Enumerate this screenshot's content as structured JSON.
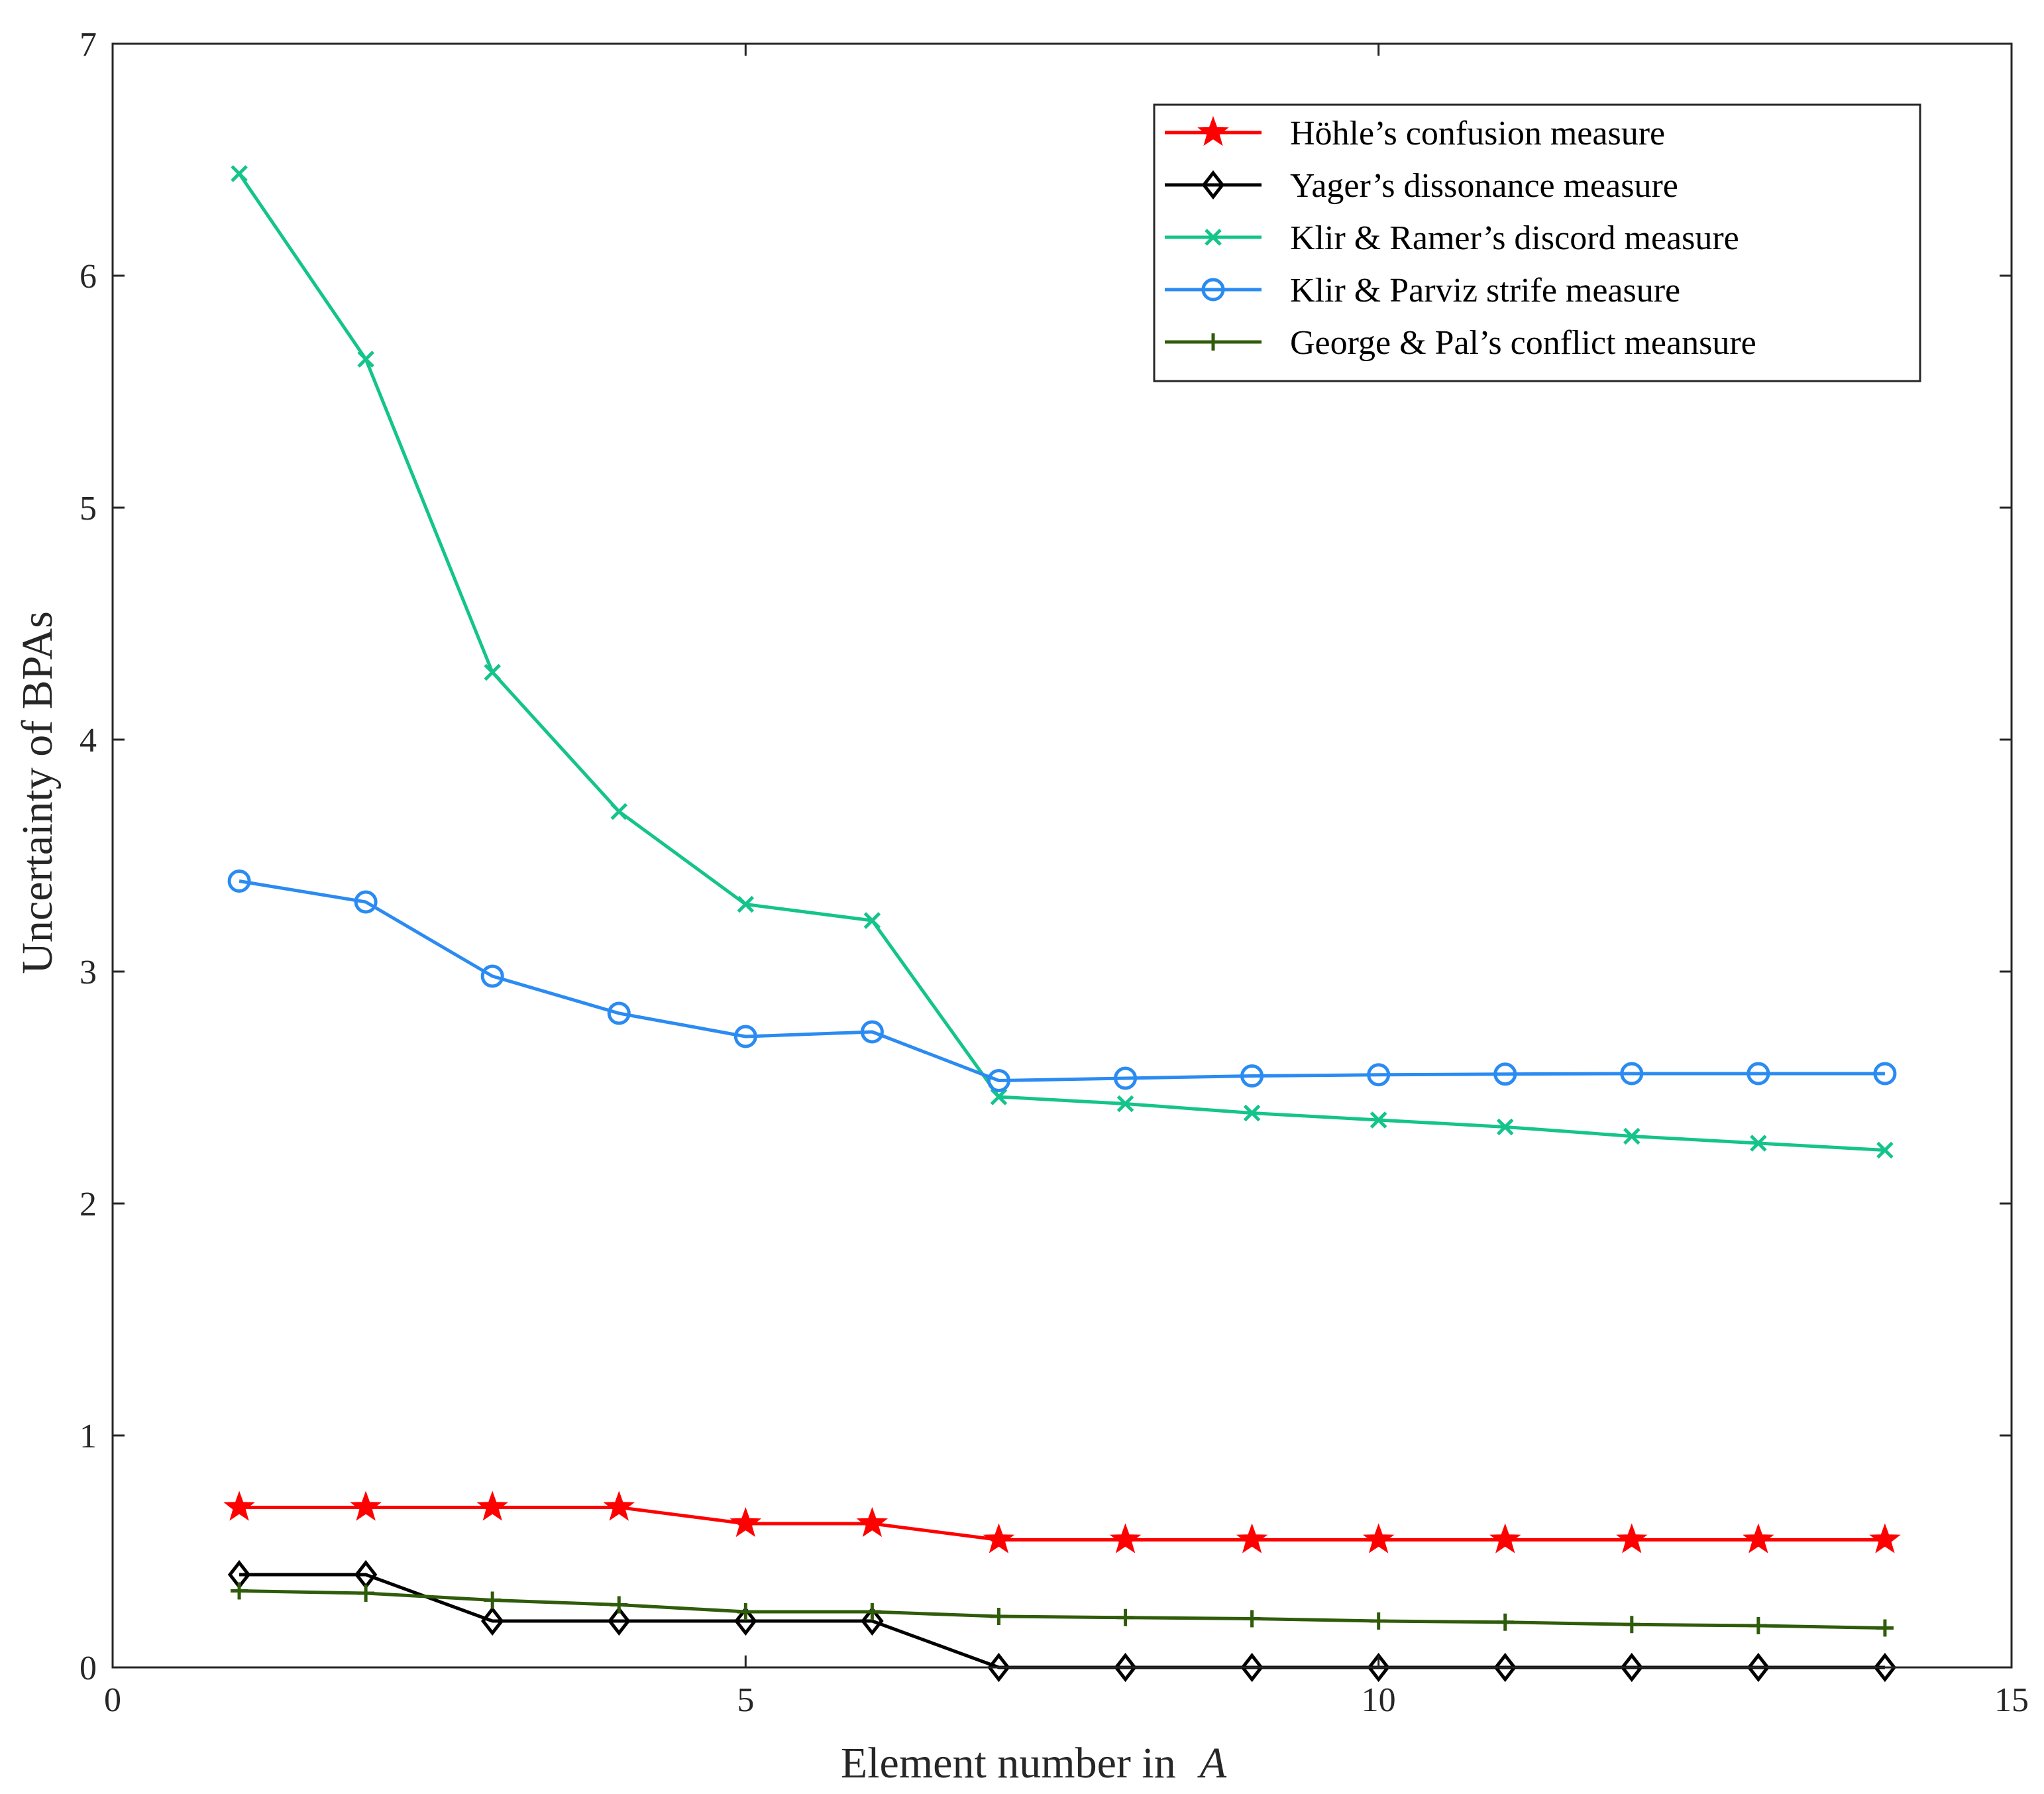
{
  "chart_data": {
    "type": "line",
    "title": "",
    "xlabel": "Element number in",
    "xlabel_symbol": "A",
    "ylabel": "Uncertainty of BPAs",
    "xlim": [
      0,
      15
    ],
    "ylim": [
      0,
      7
    ],
    "xticks": [
      0,
      5,
      10,
      15
    ],
    "yticks": [
      0,
      1,
      2,
      3,
      4,
      5,
      6,
      7
    ],
    "x": [
      1,
      2,
      3,
      4,
      5,
      6,
      7,
      8,
      9,
      10,
      11,
      12,
      13,
      14
    ],
    "legend_position": "top-right",
    "grid": false,
    "series": [
      {
        "name": "Höhle’s confusion measure",
        "color": "#ff0000",
        "marker": "pentagram",
        "values": [
          0.69,
          0.69,
          0.69,
          0.69,
          0.62,
          0.62,
          0.55,
          0.55,
          0.55,
          0.55,
          0.55,
          0.55,
          0.55,
          0.55
        ]
      },
      {
        "name": "Yager’s dissonance measure",
        "color": "#000000",
        "marker": "diamond",
        "values": [
          0.4,
          0.4,
          0.2,
          0.2,
          0.2,
          0.2,
          0.0,
          0.0,
          0.0,
          0.0,
          0.0,
          0.0,
          0.0,
          0.0
        ]
      },
      {
        "name": "Klir & Ramer’s discord measure",
        "color": "#14c48a",
        "marker": "x",
        "values": [
          6.44,
          5.64,
          4.29,
          3.69,
          3.29,
          3.22,
          2.46,
          2.43,
          2.39,
          2.36,
          2.33,
          2.29,
          2.26,
          2.23
        ]
      },
      {
        "name": "Klir & Parviz strife measure",
        "color": "#2a8bf2",
        "marker": "circle",
        "values": [
          3.39,
          3.3,
          2.98,
          2.82,
          2.72,
          2.74,
          2.53,
          2.54,
          2.55,
          2.555,
          2.558,
          2.56,
          2.56,
          2.56
        ]
      },
      {
        "name": "George & Pal’s conflict meansure",
        "color": "#2f5c0a",
        "marker": "plus",
        "values": [
          0.33,
          0.32,
          0.29,
          0.27,
          0.24,
          0.24,
          0.22,
          0.215,
          0.21,
          0.2,
          0.195,
          0.185,
          0.18,
          0.17
        ]
      }
    ]
  }
}
